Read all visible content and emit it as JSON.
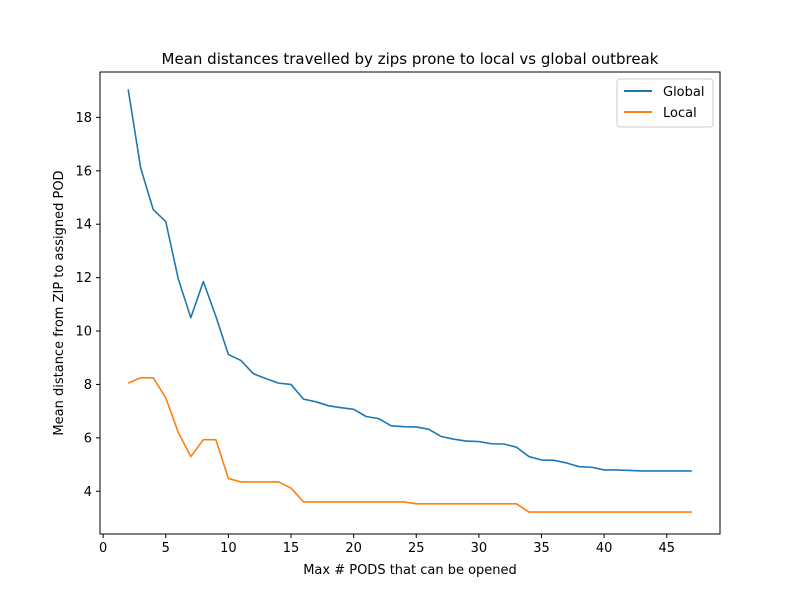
{
  "chart_data": {
    "type": "line",
    "title": "Mean distances travelled by zips prone to local vs global outbreak",
    "xlabel": "Max # PODS that can be opened",
    "ylabel": "Mean distance from ZIP to assigned POD",
    "xlim": [
      -0.25,
      49.25
    ],
    "ylim": [
      2.4,
      19.7
    ],
    "xticks": [
      0,
      5,
      10,
      15,
      20,
      25,
      30,
      35,
      40,
      45
    ],
    "yticks": [
      4,
      6,
      8,
      10,
      12,
      14,
      16,
      18
    ],
    "grid": false,
    "legend_position": "top-right",
    "x": [
      2,
      3,
      4,
      5,
      6,
      7,
      8,
      9,
      10,
      11,
      12,
      13,
      14,
      15,
      16,
      17,
      18,
      19,
      20,
      21,
      22,
      23,
      24,
      25,
      26,
      27,
      28,
      29,
      30,
      31,
      32,
      33,
      34,
      35,
      36,
      37,
      38,
      39,
      40,
      41,
      42,
      43,
      44,
      45,
      46,
      47
    ],
    "series": [
      {
        "name": "Global",
        "color": "#1f77b4",
        "values": [
          19.05,
          16.1,
          14.55,
          14.1,
          11.95,
          10.5,
          11.85,
          10.55,
          9.12,
          8.9,
          8.4,
          8.22,
          8.05,
          8.0,
          7.45,
          7.35,
          7.2,
          7.13,
          7.07,
          6.8,
          6.72,
          6.45,
          6.42,
          6.41,
          6.32,
          6.05,
          5.95,
          5.88,
          5.86,
          5.78,
          5.77,
          5.65,
          5.3,
          5.17,
          5.16,
          5.06,
          4.92,
          4.9,
          4.8,
          4.8,
          4.78,
          4.76,
          4.76,
          4.76,
          4.76,
          4.76
        ]
      },
      {
        "name": "Local",
        "color": "#ff7f0e",
        "values": [
          8.05,
          8.25,
          8.25,
          7.5,
          6.2,
          5.3,
          5.93,
          5.93,
          4.48,
          4.35,
          4.35,
          4.35,
          4.35,
          4.12,
          3.6,
          3.6,
          3.6,
          3.6,
          3.6,
          3.6,
          3.6,
          3.6,
          3.6,
          3.53,
          3.53,
          3.53,
          3.53,
          3.53,
          3.53,
          3.53,
          3.53,
          3.53,
          3.22,
          3.22,
          3.22,
          3.22,
          3.22,
          3.22,
          3.22,
          3.22,
          3.22,
          3.22,
          3.22,
          3.22,
          3.22,
          3.22
        ]
      }
    ]
  }
}
